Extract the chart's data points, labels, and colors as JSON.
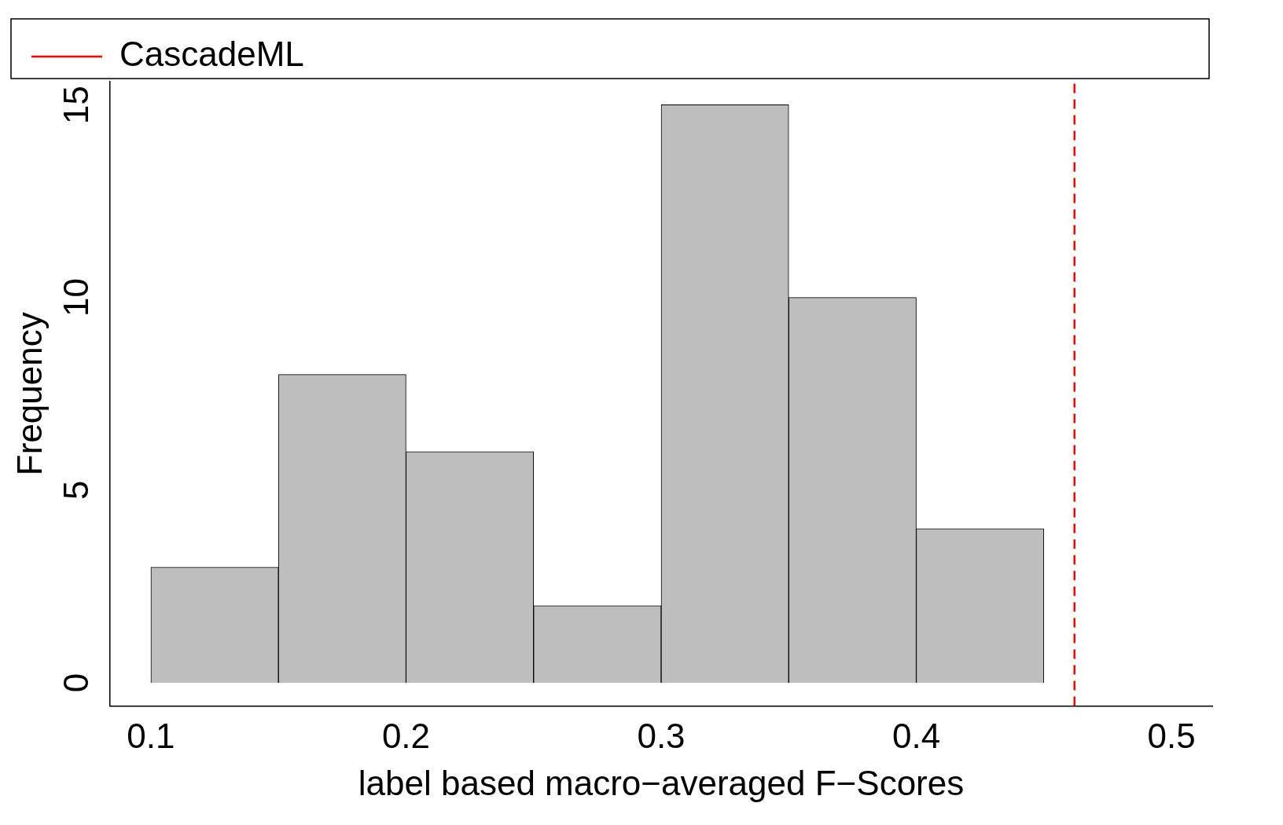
{
  "chart_data": {
    "type": "histogram",
    "xlabel": "label based macro−averaged F−Scores",
    "ylabel": "Frequency",
    "bins": [
      0.1,
      0.15,
      0.2,
      0.25,
      0.3,
      0.35,
      0.4,
      0.45
    ],
    "values": [
      3,
      8,
      6,
      2,
      15,
      10,
      4
    ],
    "color": "#bebebe",
    "xlim": [
      0.084,
      0.516
    ],
    "xticks": [
      0.1,
      0.2,
      0.3,
      0.4,
      0.5
    ],
    "ylim": [
      -0.6,
      15.6
    ],
    "yticks": [
      0,
      5,
      10,
      15
    ],
    "ref_lines": [
      {
        "axis": "x",
        "value": 0.462,
        "label": "CascadeML",
        "color": "#ff0000",
        "line_style": "dashed"
      }
    ],
    "legend": "top left",
    "grid": false
  }
}
